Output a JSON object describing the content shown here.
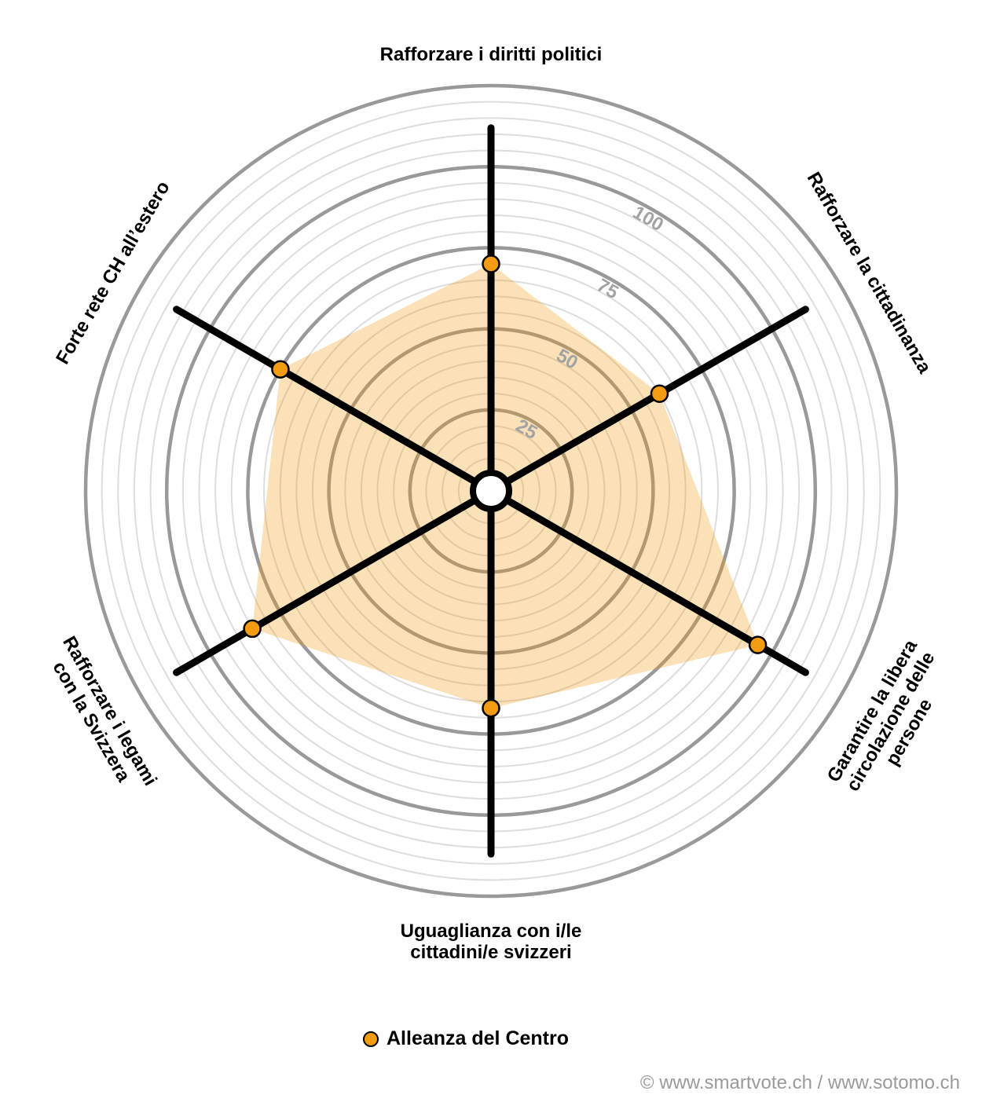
{
  "chart_data": {
    "type": "radar",
    "axes": [
      "Rafforzare i diritti politici",
      "Rafforzare la cittadinanza",
      "Garantire la libera circolazione delle persone",
      "Uguaglianza con i/le cittadini/e svizzeri",
      "Rafforzare i legami con la Svizzera",
      "Forte rete CH all’estero"
    ],
    "axis_label_lines": [
      [
        "Rafforzare i diritti politici"
      ],
      [
        "Rafforzare la cittadinanza"
      ],
      [
        "Garantire la libera",
        "circolazione delle",
        "persone"
      ],
      [
        "Uguaglianza con i/le",
        "cittadini/e svizzeri"
      ],
      [
        "Rafforzare i legami",
        "con la Svizzera"
      ],
      [
        "Forte rete CH all’estero"
      ]
    ],
    "series": [
      {
        "name": "Alleanza del Centro",
        "values": [
          70,
          60,
          95,
          67,
          85,
          75
        ]
      }
    ],
    "rlim": [
      0,
      125
    ],
    "major_ticks": [
      25,
      50,
      75,
      100
    ],
    "tick_labels": [
      "25",
      "50",
      "75",
      "100"
    ],
    "grid": true,
    "legend_position": "bottom"
  },
  "legend": {
    "label": "Alleanza del Centro"
  },
  "credit": "© www.smartvote.ch / www.sotomo.ch",
  "colors": {
    "series": "#f39c12",
    "fill": "#fddcaa",
    "axis": "#000000",
    "major_grid": "#999999",
    "minor_grid": "#dddddd",
    "tick_label": "#a3a3a3"
  }
}
